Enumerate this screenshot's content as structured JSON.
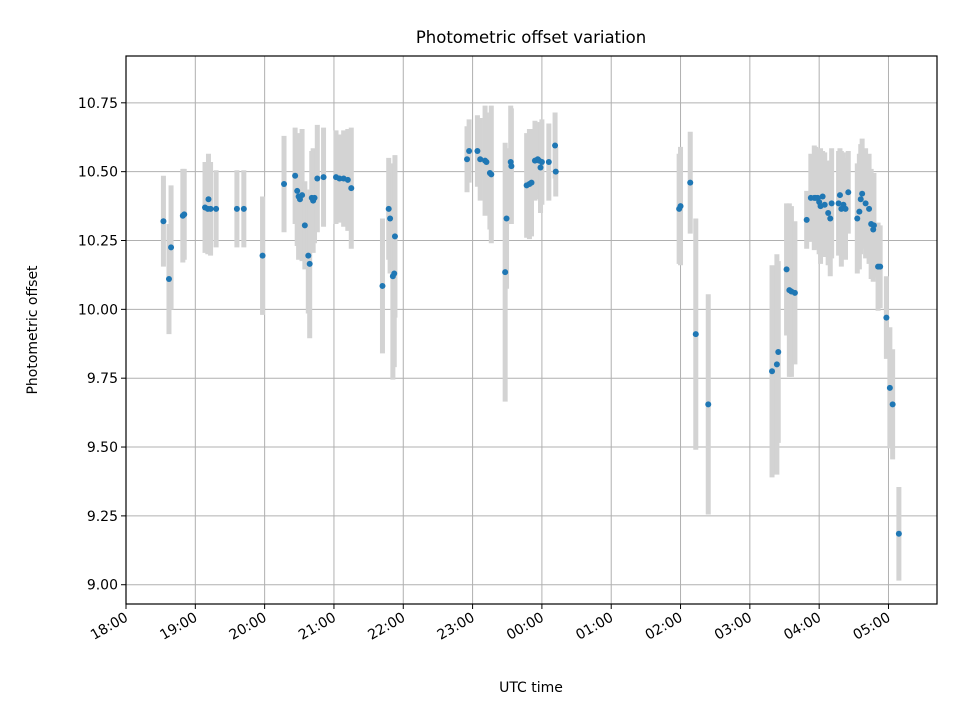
{
  "chart_data": {
    "type": "scatter",
    "title": "Photometric offset variation",
    "xlabel": "UTC time",
    "ylabel": "Photometric offset",
    "grid": true,
    "legend": "none",
    "xlim_hours": [
      18.0,
      29.7
    ],
    "ylim": [
      8.93,
      10.92
    ],
    "x_ticks": [
      {
        "h": 18,
        "label": "18:00"
      },
      {
        "h": 19,
        "label": "19:00"
      },
      {
        "h": 20,
        "label": "20:00"
      },
      {
        "h": 21,
        "label": "21:00"
      },
      {
        "h": 22,
        "label": "22:00"
      },
      {
        "h": 23,
        "label": "23:00"
      },
      {
        "h": 24,
        "label": "00:00"
      },
      {
        "h": 25,
        "label": "01:00"
      },
      {
        "h": 26,
        "label": "02:00"
      },
      {
        "h": 27,
        "label": "03:00"
      },
      {
        "h": 28,
        "label": "04:00"
      },
      {
        "h": 29,
        "label": "05:00"
      }
    ],
    "y_ticks": [
      {
        "v": 9.0,
        "label": "9.00"
      },
      {
        "v": 9.25,
        "label": "9.25"
      },
      {
        "v": 9.5,
        "label": "9.50"
      },
      {
        "v": 9.75,
        "label": "9.75"
      },
      {
        "v": 10.0,
        "label": "10.00"
      },
      {
        "v": 10.25,
        "label": "10.25"
      },
      {
        "v": 10.5,
        "label": "10.50"
      },
      {
        "v": 10.75,
        "label": "10.75"
      }
    ],
    "series": [
      {
        "name": "offset",
        "point_color": "#1f77b4",
        "errorbar_color": "#d3d3d3",
        "points": [
          {
            "t": 18.54,
            "y": 10.32,
            "e": 0.165
          },
          {
            "t": 18.62,
            "y": 10.11,
            "e": 0.2
          },
          {
            "t": 18.65,
            "y": 10.225,
            "e": 0.225
          },
          {
            "t": 18.82,
            "y": 10.34,
            "e": 0.17
          },
          {
            "t": 18.84,
            "y": 10.345,
            "e": 0.165
          },
          {
            "t": 19.14,
            "y": 10.37,
            "e": 0.165
          },
          {
            "t": 19.18,
            "y": 10.365,
            "e": 0.165
          },
          {
            "t": 19.19,
            "y": 10.4,
            "e": 0.165
          },
          {
            "t": 19.22,
            "y": 10.365,
            "e": 0.17
          },
          {
            "t": 19.3,
            "y": 10.365,
            "e": 0.14
          },
          {
            "t": 19.6,
            "y": 10.365,
            "e": 0.14
          },
          {
            "t": 19.7,
            "y": 10.365,
            "e": 0.14
          },
          {
            "t": 19.97,
            "y": 10.195,
            "e": 0.215
          },
          {
            "t": 20.28,
            "y": 10.455,
            "e": 0.175
          },
          {
            "t": 20.44,
            "y": 10.485,
            "e": 0.175
          },
          {
            "t": 20.47,
            "y": 10.43,
            "e": 0.2
          },
          {
            "t": 20.49,
            "y": 10.41,
            "e": 0.23
          },
          {
            "t": 20.51,
            "y": 10.4,
            "e": 0.205
          },
          {
            "t": 20.54,
            "y": 10.415,
            "e": 0.24
          },
          {
            "t": 20.58,
            "y": 10.305,
            "e": 0.16
          },
          {
            "t": 20.63,
            "y": 10.195,
            "e": 0.21
          },
          {
            "t": 20.65,
            "y": 10.165,
            "e": 0.27
          },
          {
            "t": 20.68,
            "y": 10.405,
            "e": 0.17
          },
          {
            "t": 20.7,
            "y": 10.395,
            "e": 0.19
          },
          {
            "t": 20.72,
            "y": 10.405,
            "e": 0.165
          },
          {
            "t": 20.76,
            "y": 10.475,
            "e": 0.195
          },
          {
            "t": 20.85,
            "y": 10.48,
            "e": 0.18
          },
          {
            "t": 21.03,
            "y": 10.48,
            "e": 0.17
          },
          {
            "t": 21.08,
            "y": 10.475,
            "e": 0.16
          },
          {
            "t": 21.14,
            "y": 10.475,
            "e": 0.175
          },
          {
            "t": 21.2,
            "y": 10.47,
            "e": 0.185
          },
          {
            "t": 21.25,
            "y": 10.44,
            "e": 0.22
          },
          {
            "t": 21.7,
            "y": 10.085,
            "e": 0.245
          },
          {
            "t": 21.79,
            "y": 10.365,
            "e": 0.185
          },
          {
            "t": 21.81,
            "y": 10.33,
            "e": 0.2
          },
          {
            "t": 21.85,
            "y": 10.12,
            "e": 0.375
          },
          {
            "t": 21.87,
            "y": 10.13,
            "e": 0.34
          },
          {
            "t": 21.88,
            "y": 10.265,
            "e": 0.295
          },
          {
            "t": 22.92,
            "y": 10.545,
            "e": 0.12
          },
          {
            "t": 22.95,
            "y": 10.575,
            "e": 0.115
          },
          {
            "t": 23.07,
            "y": 10.575,
            "e": 0.13
          },
          {
            "t": 23.11,
            "y": 10.545,
            "e": 0.15
          },
          {
            "t": 23.18,
            "y": 10.54,
            "e": 0.2
          },
          {
            "t": 23.2,
            "y": 10.535,
            "e": 0.18
          },
          {
            "t": 23.25,
            "y": 10.495,
            "e": 0.205
          },
          {
            "t": 23.27,
            "y": 10.49,
            "e": 0.25
          },
          {
            "t": 23.47,
            "y": 10.135,
            "e": 0.47
          },
          {
            "t": 23.49,
            "y": 10.33,
            "e": 0.255
          },
          {
            "t": 23.55,
            "y": 10.535,
            "e": 0.205
          },
          {
            "t": 23.56,
            "y": 10.52,
            "e": 0.21
          },
          {
            "t": 23.78,
            "y": 10.45,
            "e": 0.19
          },
          {
            "t": 23.82,
            "y": 10.455,
            "e": 0.2
          },
          {
            "t": 23.85,
            "y": 10.46,
            "e": 0.195
          },
          {
            "t": 23.9,
            "y": 10.54,
            "e": 0.145
          },
          {
            "t": 23.94,
            "y": 10.545,
            "e": 0.13
          },
          {
            "t": 23.96,
            "y": 10.54,
            "e": 0.14
          },
          {
            "t": 23.98,
            "y": 10.515,
            "e": 0.165
          },
          {
            "t": 24.0,
            "y": 10.535,
            "e": 0.155
          },
          {
            "t": 24.1,
            "y": 10.535,
            "e": 0.14
          },
          {
            "t": 24.19,
            "y": 10.595,
            "e": 0.12
          },
          {
            "t": 24.2,
            "y": 10.5,
            "e": 0.09
          },
          {
            "t": 25.98,
            "y": 10.365,
            "e": 0.2
          },
          {
            "t": 26.0,
            "y": 10.375,
            "e": 0.215
          },
          {
            "t": 26.14,
            "y": 10.46,
            "e": 0.185
          },
          {
            "t": 26.22,
            "y": 9.91,
            "e": 0.42
          },
          {
            "t": 26.4,
            "y": 9.655,
            "e": 0.4
          },
          {
            "t": 27.32,
            "y": 9.775,
            "e": 0.385
          },
          {
            "t": 27.39,
            "y": 9.8,
            "e": 0.4
          },
          {
            "t": 27.41,
            "y": 9.845,
            "e": 0.33
          },
          {
            "t": 27.53,
            "y": 10.145,
            "e": 0.24
          },
          {
            "t": 27.57,
            "y": 10.07,
            "e": 0.315
          },
          {
            "t": 27.6,
            "y": 10.065,
            "e": 0.31
          },
          {
            "t": 27.65,
            "y": 10.06,
            "e": 0.26
          },
          {
            "t": 27.82,
            "y": 10.325,
            "e": 0.105
          },
          {
            "t": 27.88,
            "y": 10.405,
            "e": 0.16
          },
          {
            "t": 27.93,
            "y": 10.405,
            "e": 0.19
          },
          {
            "t": 27.95,
            "y": 10.405,
            "e": 0.185
          },
          {
            "t": 27.98,
            "y": 10.405,
            "e": 0.175
          },
          {
            "t": 28.0,
            "y": 10.39,
            "e": 0.19
          },
          {
            "t": 28.02,
            "y": 10.375,
            "e": 0.21
          },
          {
            "t": 28.05,
            "y": 10.41,
            "e": 0.165
          },
          {
            "t": 28.08,
            "y": 10.38,
            "e": 0.19
          },
          {
            "t": 28.13,
            "y": 10.35,
            "e": 0.19
          },
          {
            "t": 28.16,
            "y": 10.33,
            "e": 0.21
          },
          {
            "t": 28.18,
            "y": 10.385,
            "e": 0.2
          },
          {
            "t": 28.28,
            "y": 10.385,
            "e": 0.19
          },
          {
            "t": 28.3,
            "y": 10.415,
            "e": 0.17
          },
          {
            "t": 28.32,
            "y": 10.365,
            "e": 0.21
          },
          {
            "t": 28.35,
            "y": 10.38,
            "e": 0.19
          },
          {
            "t": 28.38,
            "y": 10.365,
            "e": 0.185
          },
          {
            "t": 28.42,
            "y": 10.425,
            "e": 0.15
          },
          {
            "t": 28.55,
            "y": 10.33,
            "e": 0.2
          },
          {
            "t": 28.58,
            "y": 10.355,
            "e": 0.21
          },
          {
            "t": 28.6,
            "y": 10.4,
            "e": 0.2
          },
          {
            "t": 28.62,
            "y": 10.42,
            "e": 0.2
          },
          {
            "t": 28.67,
            "y": 10.385,
            "e": 0.2
          },
          {
            "t": 28.72,
            "y": 10.365,
            "e": 0.2
          },
          {
            "t": 28.75,
            "y": 10.31,
            "e": 0.2
          },
          {
            "t": 28.78,
            "y": 10.29,
            "e": 0.19
          },
          {
            "t": 28.79,
            "y": 10.305,
            "e": 0.19
          },
          {
            "t": 28.85,
            "y": 10.155,
            "e": 0.16
          },
          {
            "t": 28.88,
            "y": 10.155,
            "e": 0.15
          },
          {
            "t": 28.97,
            "y": 9.97,
            "e": 0.15
          },
          {
            "t": 29.02,
            "y": 9.715,
            "e": 0.22
          },
          {
            "t": 29.06,
            "y": 9.655,
            "e": 0.2
          },
          {
            "t": 29.15,
            "y": 9.185,
            "e": 0.17
          }
        ]
      }
    ]
  }
}
